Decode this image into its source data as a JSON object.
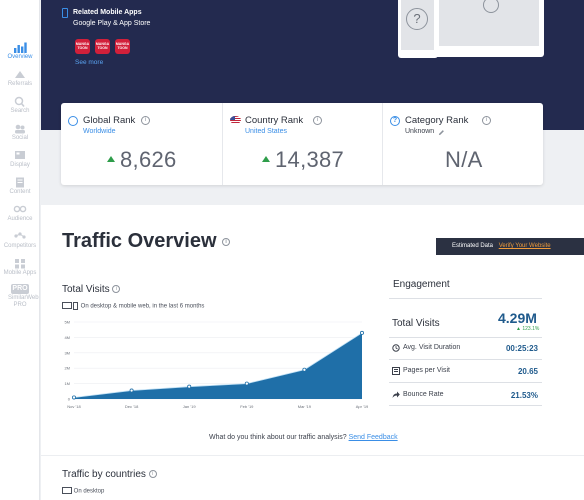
{
  "sidebar": {
    "items": [
      {
        "label": "Overview",
        "icon": "bar-chart-icon",
        "active": true
      },
      {
        "label": "Referrals",
        "icon": "referrals-icon"
      },
      {
        "label": "Search",
        "icon": "search-icon"
      },
      {
        "label": "Social",
        "icon": "social-icon"
      },
      {
        "label": "Display",
        "icon": "display-icon"
      },
      {
        "label": "Content",
        "icon": "content-icon"
      },
      {
        "label": "Audience",
        "icon": "audience-icon"
      },
      {
        "label": "Competitors",
        "icon": "competitors-icon"
      },
      {
        "label": "Mobile Apps",
        "icon": "mobile-apps-icon"
      },
      {
        "label": "SimilarWeb PRO",
        "icon": "pro-badge-icon",
        "badge": "PRO"
      }
    ]
  },
  "apps": {
    "title": "Related Mobile Apps",
    "subtitle": "Google Play & App Store",
    "icons": [
      {
        "text": "MANGA TOON",
        "color": "#d2203a"
      },
      {
        "text": "MANGA TOON",
        "color": "#d2203a"
      },
      {
        "text": "MANGA TOON",
        "color": "#d2203a"
      }
    ],
    "see_more": "See more"
  },
  "ranks": {
    "global": {
      "title": "Global Rank",
      "sub": "Worldwide",
      "value": "8,626"
    },
    "country": {
      "title": "Country Rank",
      "sub": "United States",
      "value": "14,387"
    },
    "category": {
      "title": "Category Rank",
      "sub": "Unknown",
      "value": "N/A"
    }
  },
  "traffic": {
    "title": "Traffic Overview",
    "estimated": "Estimated Data",
    "verify": "Verify Your Website",
    "total_visits_title": "Total Visits",
    "total_visits_sub": "On desktop & mobile web, in the last 6 months",
    "engagement_title": "Engagement",
    "feedback_q": "What do you think about our traffic analysis?",
    "feedback_link": "Send Feedback",
    "countries_title": "Traffic by countries",
    "countries_sub": "On desktop"
  },
  "engagement": {
    "total_label": "Total Visits",
    "total_value": "4.29M",
    "total_change": "123.1%",
    "rows": [
      {
        "label": "Avg. Visit Duration",
        "value": "00:25:23",
        "icon": "clock-icon"
      },
      {
        "label": "Pages per Visit",
        "value": "20.65",
        "icon": "pages-icon"
      },
      {
        "label": "Bounce Rate",
        "value": "21.53%",
        "icon": "bounce-arrow-icon"
      }
    ]
  },
  "colors": {
    "accent": "#3a8ee6",
    "hero": "#232a4f",
    "chart_fill": "#1f6fa8",
    "positive": "#2e9d4a",
    "verify_link": "#f19c3b"
  },
  "chart_data": {
    "type": "area",
    "categories": [
      "Nov '18",
      "Dec '18",
      "Jan '19",
      "Feb '19",
      "Mar '19",
      "Apr '19"
    ],
    "y_ticks": [
      "0",
      "1M",
      "2M",
      "3M",
      "4M",
      "5M"
    ],
    "series": [
      {
        "values": [
          0.1,
          0.55,
          0.8,
          1.0,
          1.9,
          4.29
        ]
      }
    ],
    "ylim": [
      0,
      5
    ],
    "grid": true
  }
}
